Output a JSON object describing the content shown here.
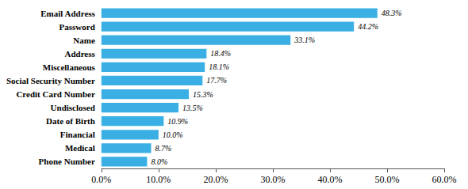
{
  "chart_data": {
    "type": "bar",
    "orientation": "horizontal",
    "categories": [
      "Phone Number",
      "Medical",
      "Financial",
      "Date of Birth",
      "Undisclosed",
      "Credit Card Number",
      "Social Security Number",
      "Miscellaneous",
      "Address",
      "Name",
      "Password",
      "Email Address"
    ],
    "values": [
      8.0,
      8.7,
      10.0,
      10.9,
      13.5,
      15.3,
      17.7,
      18.1,
      18.4,
      33.1,
      44.2,
      48.3
    ],
    "value_labels": [
      "8.0%",
      "8.7%",
      "10.0%",
      "10.9%",
      "13.5%",
      "15.3%",
      "17.7%",
      "18.1%",
      "18.4%",
      "33.1%",
      "44.2%",
      "48.3%"
    ],
    "data_labels": true,
    "color": "#3AAFE4",
    "xlim": [
      0,
      60
    ],
    "xticks": [
      {
        "value": 0,
        "label": "0.0%"
      },
      {
        "value": 10,
        "label": "10.0%"
      },
      {
        "value": 20,
        "label": "20.0%"
      },
      {
        "value": 30,
        "label": "30.0%"
      },
      {
        "value": 40,
        "label": "40.0%"
      },
      {
        "value": 50,
        "label": "50.0%"
      },
      {
        "value": 60,
        "label": "60.0%"
      }
    ],
    "grid": false
  }
}
